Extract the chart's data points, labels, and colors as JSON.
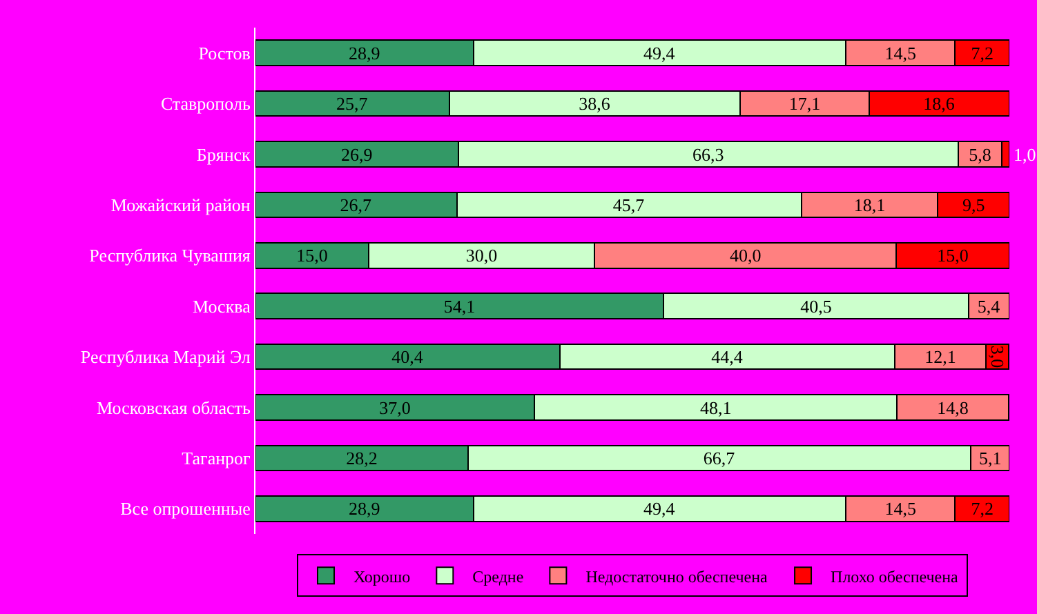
{
  "chart_data": {
    "type": "bar",
    "orientation": "horizontal",
    "stacked": true,
    "legend": "bottom",
    "grid": false,
    "categories": [
      "Ростов",
      "Ставрополь",
      "Брянск",
      "Можайский район",
      "Республика Чувашия",
      "Москва",
      "Республика Марий Эл",
      "Московская область",
      "Таганрог",
      "Все опрошенные"
    ],
    "xlim": [
      0,
      100
    ],
    "tick_labels": "y",
    "series": [
      {
        "name": "Хорошо",
        "color": "#339966",
        "values": [
          28.9,
          25.7,
          26.9,
          26.7,
          15.0,
          54.1,
          40.4,
          37.0,
          28.2,
          28.9
        ],
        "value_labels": [
          "28,9",
          "25,7",
          "26,9",
          "26,7",
          "15,0",
          "54,1",
          "40,4",
          "37,0",
          "28,2",
          "28,9"
        ]
      },
      {
        "name": "Средне",
        "color": "#ccffcc",
        "values": [
          49.4,
          38.6,
          66.3,
          45.7,
          30.0,
          40.5,
          44.4,
          48.1,
          66.7,
          49.4
        ],
        "value_labels": [
          "49,4",
          "38,6",
          "66,3",
          "45,7",
          "30,0",
          "40,5",
          "44,4",
          "48,1",
          "66,7",
          "49,4"
        ]
      },
      {
        "name": "Недостаточно обеспечена",
        "color": "#ff8080",
        "values": [
          14.5,
          17.1,
          5.8,
          18.1,
          40.0,
          5.4,
          12.1,
          14.8,
          5.1,
          14.5
        ],
        "value_labels": [
          "14,5",
          "17,1",
          "5,8",
          "18,1",
          "40,0",
          "5,4",
          "12,1",
          "14,8",
          "5,1",
          "14,5"
        ]
      },
      {
        "name": "Плохо обеспечена",
        "color": "#ff0000",
        "values": [
          7.2,
          18.6,
          1.0,
          9.5,
          15.0,
          null,
          3.0,
          null,
          null,
          7.2
        ],
        "value_labels": [
          "7,2",
          "18,6",
          "1,0",
          "9,5",
          "15,0",
          null,
          "3,0",
          null,
          null,
          "7,2"
        ]
      }
    ]
  }
}
